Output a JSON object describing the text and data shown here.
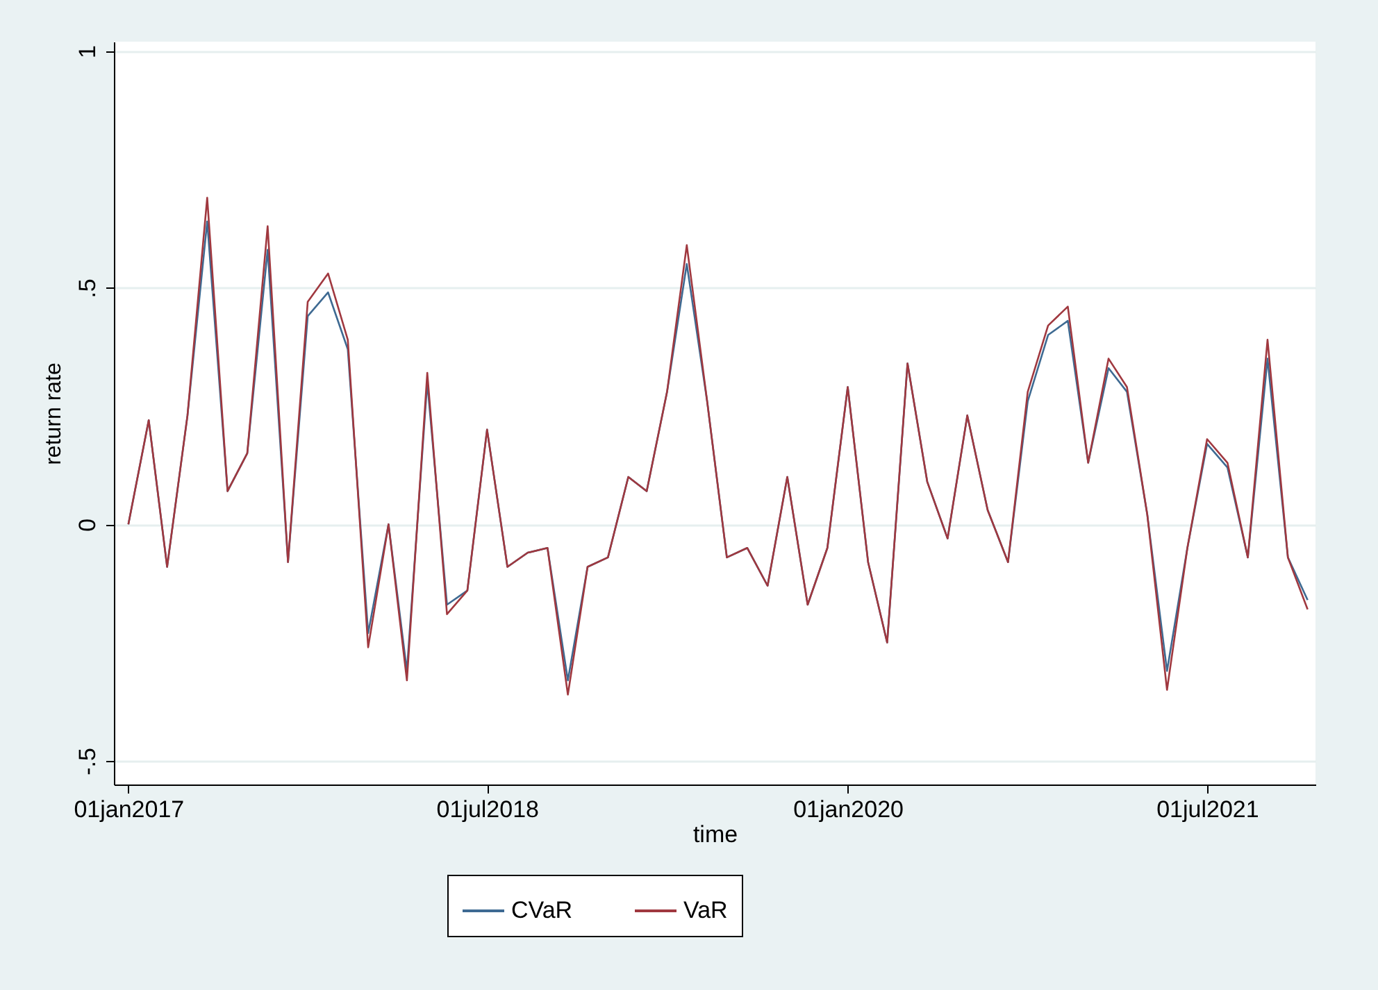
{
  "chart_data": {
    "type": "line",
    "xlabel": "time",
    "ylabel": "return rate",
    "x": [
      "2017-01",
      "2017-02",
      "2017-03",
      "2017-04",
      "2017-05",
      "2017-06",
      "2017-07",
      "2017-08",
      "2017-09",
      "2017-10",
      "2017-11",
      "2017-12",
      "2018-01",
      "2018-02",
      "2018-03",
      "2018-04",
      "2018-05",
      "2018-06",
      "2018-07",
      "2018-08",
      "2018-09",
      "2018-10",
      "2018-11",
      "2018-12",
      "2019-01",
      "2019-02",
      "2019-03",
      "2019-04",
      "2019-05",
      "2019-06",
      "2019-07",
      "2019-08",
      "2019-09",
      "2019-10",
      "2019-11",
      "2019-12",
      "2020-01",
      "2020-02",
      "2020-03",
      "2020-04",
      "2020-05",
      "2020-06",
      "2020-07",
      "2020-08",
      "2020-09",
      "2020-10",
      "2020-11",
      "2020-12",
      "2021-01",
      "2021-02",
      "2021-03",
      "2021-04",
      "2021-05",
      "2021-06",
      "2021-07",
      "2021-08",
      "2021-09",
      "2021-10",
      "2021-11",
      "2021-12"
    ],
    "series": [
      {
        "name": "CVaR",
        "color": "#3e6a92",
        "values": [
          0.0,
          0.22,
          -0.09,
          0.23,
          0.64,
          0.07,
          0.15,
          0.58,
          -0.08,
          0.44,
          0.49,
          0.37,
          -0.23,
          0.0,
          -0.31,
          0.3,
          -0.17,
          -0.14,
          0.2,
          -0.09,
          -0.06,
          -0.05,
          -0.33,
          -0.09,
          -0.07,
          0.1,
          0.07,
          0.28,
          0.55,
          0.26,
          -0.07,
          -0.05,
          -0.13,
          0.1,
          -0.17,
          -0.05,
          0.29,
          -0.08,
          -0.25,
          0.34,
          0.09,
          -0.03,
          0.23,
          0.03,
          -0.08,
          0.26,
          0.4,
          0.43,
          0.13,
          0.33,
          0.28,
          0.02,
          -0.31,
          -0.05,
          0.17,
          0.12,
          -0.07,
          0.35,
          -0.07,
          -0.16
        ]
      },
      {
        "name": "VaR",
        "color": "#a0383f",
        "values": [
          0.0,
          0.22,
          -0.09,
          0.23,
          0.69,
          0.07,
          0.15,
          0.63,
          -0.08,
          0.47,
          0.53,
          0.39,
          -0.26,
          0.0,
          -0.33,
          0.32,
          -0.19,
          -0.14,
          0.2,
          -0.09,
          -0.06,
          -0.05,
          -0.36,
          -0.09,
          -0.07,
          0.1,
          0.07,
          0.28,
          0.59,
          0.26,
          -0.07,
          -0.05,
          -0.13,
          0.1,
          -0.17,
          -0.05,
          0.29,
          -0.08,
          -0.25,
          0.34,
          0.09,
          -0.03,
          0.23,
          0.03,
          -0.08,
          0.28,
          0.42,
          0.46,
          0.13,
          0.35,
          0.29,
          0.02,
          -0.35,
          -0.05,
          0.18,
          0.13,
          -0.07,
          0.39,
          -0.07,
          -0.18
        ]
      }
    ],
    "xlim": [
      "2016-12-10",
      "2021-12-13"
    ],
    "xticks": [
      {
        "value": "2017-01-01",
        "label": "01jan2017"
      },
      {
        "value": "2018-07-01",
        "label": "01jul2018"
      },
      {
        "value": "2020-01-01",
        "label": "01jan2020"
      },
      {
        "value": "2021-07-01",
        "label": "01jul2021"
      }
    ],
    "ylim": [
      -0.55,
      1.02
    ],
    "yticks": [
      {
        "value": -0.5,
        "label": "-.5"
      },
      0,
      {
        "value": 0.5,
        "label": ".5"
      },
      1
    ],
    "grid": "y",
    "legend": "bottom",
    "line_style": "solid",
    "marker": "none"
  }
}
